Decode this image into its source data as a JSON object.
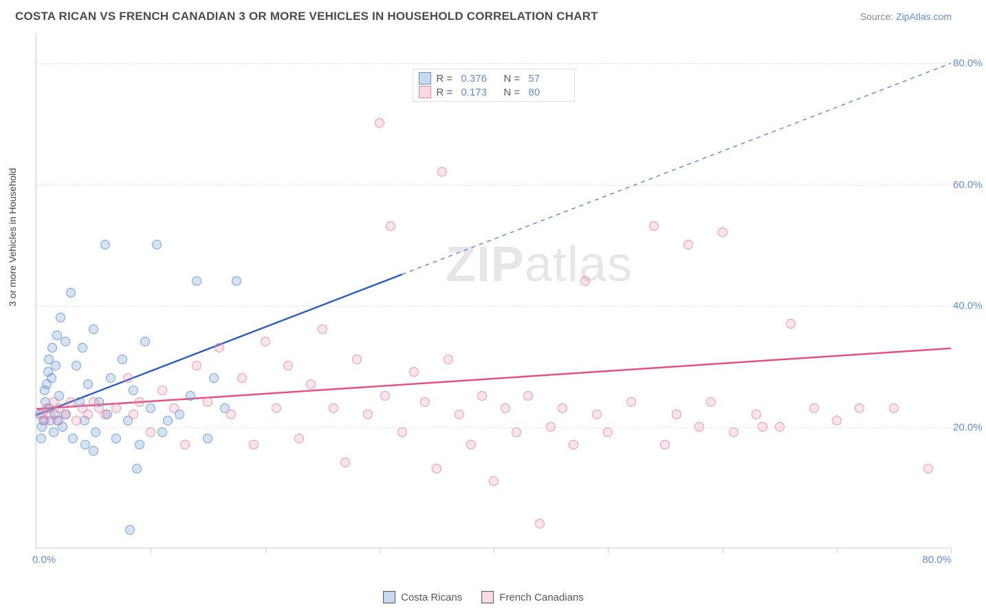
{
  "header": {
    "title": "COSTA RICAN VS FRENCH CANADIAN 3 OR MORE VEHICLES IN HOUSEHOLD CORRELATION CHART",
    "source_prefix": "Source: ",
    "source_link": "ZipAtlas.com"
  },
  "chart": {
    "type": "scatter",
    "ylabel": "3 or more Vehicles in Household",
    "xlim": [
      0,
      80
    ],
    "ylim": [
      0,
      85
    ],
    "xtick_positions": [
      10,
      20,
      30,
      40,
      50,
      60,
      70,
      80
    ],
    "x_origin_label": "0.0%",
    "x_max_label": "80.0%",
    "yticks": [
      20,
      40,
      60,
      80
    ],
    "ytick_labels": [
      "20.0%",
      "40.0%",
      "60.0%",
      "80.0%"
    ],
    "grid_color": "#e4e4e4",
    "background_color": "#ffffff",
    "watermark": "ZIPatlas",
    "series": [
      {
        "name": "Costa Ricans",
        "color_fill": "rgba(98,148,217,0.32)",
        "color_stroke": "#5f94d9",
        "trend_color": "#2b5fc1",
        "trend_solid_end_x": 32,
        "trend": {
          "x1": 0,
          "y1": 22,
          "x2": 80,
          "y2": 80
        },
        "R": "0.376",
        "N": "57",
        "points": [
          [
            0.3,
            22
          ],
          [
            0.4,
            18
          ],
          [
            0.5,
            20
          ],
          [
            0.6,
            21
          ],
          [
            0.7,
            26
          ],
          [
            0.8,
            24
          ],
          [
            0.9,
            27
          ],
          [
            1.0,
            29
          ],
          [
            1.1,
            23
          ],
          [
            1.1,
            31
          ],
          [
            1.2,
            21
          ],
          [
            1.3,
            28
          ],
          [
            1.4,
            33
          ],
          [
            1.5,
            19
          ],
          [
            1.6,
            22
          ],
          [
            1.7,
            30
          ],
          [
            1.8,
            35
          ],
          [
            1.9,
            21
          ],
          [
            2.0,
            25
          ],
          [
            2.1,
            38
          ],
          [
            2.3,
            20
          ],
          [
            2.5,
            34
          ],
          [
            2.6,
            22
          ],
          [
            3.0,
            42
          ],
          [
            3.2,
            18
          ],
          [
            3.5,
            30
          ],
          [
            3.8,
            24
          ],
          [
            4.0,
            33
          ],
          [
            4.2,
            21
          ],
          [
            4.5,
            27
          ],
          [
            5.0,
            36
          ],
          [
            5.2,
            19
          ],
          [
            5.5,
            24
          ],
          [
            6.0,
            50
          ],
          [
            6.2,
            22
          ],
          [
            6.5,
            28
          ],
          [
            7.0,
            18
          ],
          [
            7.5,
            31
          ],
          [
            8.0,
            21
          ],
          [
            8.5,
            26
          ],
          [
            9.0,
            17
          ],
          [
            9.5,
            34
          ],
          [
            10.0,
            23
          ],
          [
            10.5,
            50
          ],
          [
            11.0,
            19
          ],
          [
            11.5,
            21
          ],
          [
            12.5,
            22
          ],
          [
            13.5,
            25
          ],
          [
            14.0,
            44
          ],
          [
            15.0,
            18
          ],
          [
            15.5,
            28
          ],
          [
            16.5,
            23
          ],
          [
            17.5,
            44
          ],
          [
            8.8,
            13
          ],
          [
            8.2,
            3
          ],
          [
            5.0,
            16
          ],
          [
            4.3,
            17
          ]
        ]
      },
      {
        "name": "French Canadians",
        "color_fill": "rgba(237,130,160,0.25)",
        "color_stroke": "#e985a4",
        "trend_color": "#e84e84",
        "trend": {
          "x1": 0,
          "y1": 23,
          "x2": 80,
          "y2": 33
        },
        "R": "0.173",
        "N": "80",
        "points": [
          [
            0.5,
            22
          ],
          [
            0.7,
            21
          ],
          [
            0.9,
            23
          ],
          [
            1.2,
            22
          ],
          [
            1.5,
            24
          ],
          [
            1.8,
            21
          ],
          [
            2.0,
            23
          ],
          [
            2.5,
            22
          ],
          [
            3.0,
            24
          ],
          [
            3.5,
            21
          ],
          [
            4.0,
            23
          ],
          [
            4.5,
            22
          ],
          [
            5.0,
            24
          ],
          [
            5.5,
            23
          ],
          [
            6.0,
            22
          ],
          [
            7.0,
            23
          ],
          [
            8.0,
            28
          ],
          [
            8.5,
            22
          ],
          [
            9.0,
            24
          ],
          [
            10.0,
            19
          ],
          [
            11.0,
            26
          ],
          [
            12.0,
            23
          ],
          [
            13.0,
            17
          ],
          [
            14.0,
            30
          ],
          [
            15.0,
            24
          ],
          [
            16.0,
            33
          ],
          [
            17.0,
            22
          ],
          [
            18.0,
            28
          ],
          [
            19.0,
            17
          ],
          [
            20.0,
            34
          ],
          [
            21.0,
            23
          ],
          [
            22.0,
            30
          ],
          [
            23.0,
            18
          ],
          [
            24.0,
            27
          ],
          [
            25.0,
            36
          ],
          [
            26.0,
            23
          ],
          [
            27.0,
            14
          ],
          [
            28.0,
            31
          ],
          [
            29.0,
            22
          ],
          [
            30.0,
            70
          ],
          [
            30.5,
            25
          ],
          [
            31.0,
            53
          ],
          [
            32.0,
            19
          ],
          [
            33.0,
            29
          ],
          [
            34.0,
            24
          ],
          [
            35.0,
            13
          ],
          [
            35.5,
            62
          ],
          [
            36.0,
            31
          ],
          [
            37.0,
            22
          ],
          [
            38.0,
            17
          ],
          [
            39.0,
            25
          ],
          [
            40.0,
            11
          ],
          [
            41.0,
            23
          ],
          [
            42.0,
            19
          ],
          [
            43.0,
            25
          ],
          [
            44.0,
            4
          ],
          [
            45.0,
            20
          ],
          [
            46.0,
            23
          ],
          [
            47.0,
            17
          ],
          [
            48.0,
            44
          ],
          [
            49.0,
            22
          ],
          [
            50.0,
            19
          ],
          [
            52.0,
            24
          ],
          [
            54.0,
            53
          ],
          [
            55.0,
            17
          ],
          [
            56.0,
            22
          ],
          [
            57.0,
            50
          ],
          [
            58.0,
            20
          ],
          [
            59.0,
            24
          ],
          [
            60.0,
            52
          ],
          [
            61.0,
            19
          ],
          [
            63.0,
            22
          ],
          [
            65.0,
            20
          ],
          [
            66.0,
            37
          ],
          [
            68.0,
            23
          ],
          [
            70.0,
            21
          ],
          [
            72.0,
            23
          ],
          [
            75.0,
            23
          ],
          [
            78.0,
            13
          ],
          [
            63.5,
            20
          ]
        ]
      }
    ]
  },
  "bottom_legend": {
    "items": [
      "Costa Ricans",
      "French Canadians"
    ]
  }
}
